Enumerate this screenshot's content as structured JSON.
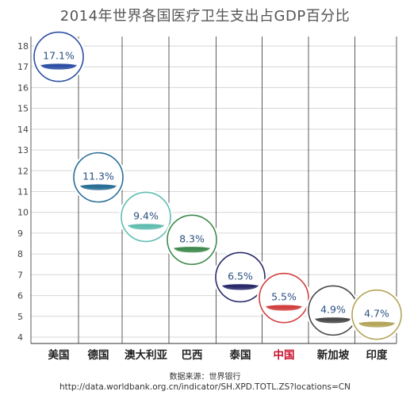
{
  "chart_data": {
    "type": "scatter",
    "title": "2014年世界各国医疗卫生支出占GDP百分比",
    "categories": [
      "美国",
      "德国",
      "澳大利亚",
      "巴西",
      "泰国",
      "中国",
      "新加坡",
      "印度"
    ],
    "values": [
      17.1,
      11.3,
      9.4,
      8.3,
      6.5,
      5.5,
      4.9,
      4.7
    ],
    "value_labels": [
      "17.1%",
      "11.3%",
      "9.4%",
      "8.3%",
      "6.5%",
      "5.5%",
      "4.9%",
      "4.7%"
    ],
    "y_ticks": [
      4,
      5,
      6,
      7,
      8,
      9,
      10,
      11,
      12,
      13,
      14,
      15,
      16,
      17,
      18
    ],
    "ylim": [
      4,
      18
    ],
    "grid": true,
    "highlight_category": "中国",
    "colors": {
      "美国": "#2e4fa3",
      "德国": "#2a6f96",
      "澳大利亚": "#62bdb1",
      "巴西": "#3f8a4e",
      "泰国": "#2a2a6a",
      "中国": "#d04040",
      "新加坡": "#4a4a4a",
      "印度": "#b3a55a"
    },
    "label_color": "#2a5080",
    "highlight_label_color": "#c8102e"
  },
  "source": {
    "label": "数据来源：世界银行",
    "url": "http://data.worldbank.org.cn/indicator/SH.XPD.TOTL.ZS?locations=CN"
  }
}
